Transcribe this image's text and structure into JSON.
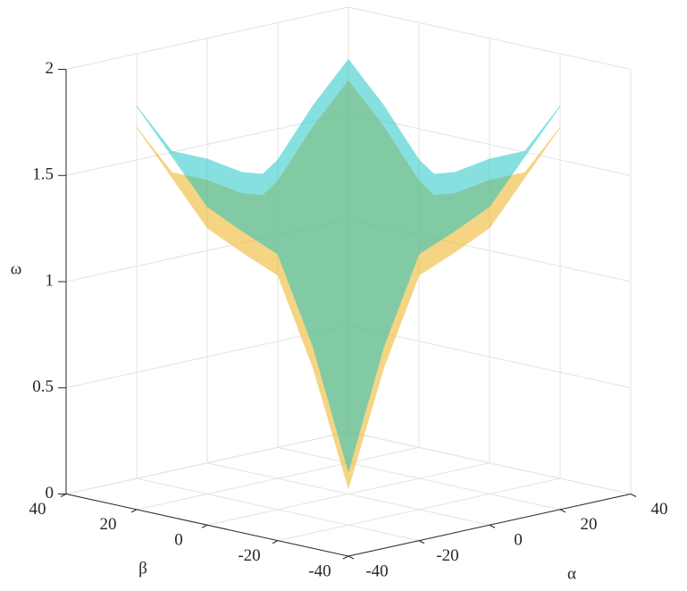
{
  "chart_data": {
    "type": "surface3d",
    "x_label": "α",
    "y_label": "β",
    "z_label": "ω",
    "xlim": [
      -40,
      40
    ],
    "ylim": [
      -40,
      40
    ],
    "zlim": [
      0,
      2
    ],
    "xticks": [
      -40,
      -20,
      0,
      20,
      40
    ],
    "yticks": [
      -40,
      -20,
      0,
      20,
      40
    ],
    "zticks": [
      0,
      0.5,
      1,
      1.5,
      2
    ],
    "grid": true,
    "x": [
      -40,
      -30,
      -20,
      -10,
      0,
      10,
      20
    ],
    "y": [
      -40,
      -30,
      -20,
      -10,
      0,
      10,
      20
    ],
    "series": [
      {
        "color": "#EDB120",
        "opacity": 0.55,
        "z": [
          [
            0.32,
            0.85,
            1.25,
            1.32,
            1.4,
            1.6,
            1.8
          ],
          [
            0.85,
            1.05,
            1.35,
            1.42,
            1.48,
            1.55,
            1.55
          ],
          [
            1.25,
            1.35,
            1.4,
            1.42,
            1.46,
            1.45,
            1.32
          ],
          [
            1.32,
            1.42,
            1.42,
            1.5,
            1.48,
            1.4,
            1.28
          ],
          [
            1.4,
            1.48,
            1.46,
            1.48,
            1.55,
            1.52,
            1.4
          ],
          [
            1.6,
            1.55,
            1.45,
            1.4,
            1.52,
            1.65,
            1.62
          ],
          [
            1.8,
            1.55,
            1.32,
            1.28,
            1.4,
            1.62,
            1.8
          ]
        ]
      },
      {
        "color": "#12C2C2",
        "opacity": 0.5,
        "z": [
          [
            0.4,
            0.95,
            1.35,
            1.42,
            1.5,
            1.7,
            1.9
          ],
          [
            0.95,
            1.15,
            1.45,
            1.52,
            1.58,
            1.65,
            1.65
          ],
          [
            1.35,
            1.45,
            1.5,
            1.52,
            1.56,
            1.55,
            1.42
          ],
          [
            1.42,
            1.52,
            1.52,
            1.6,
            1.58,
            1.5,
            1.38
          ],
          [
            1.5,
            1.58,
            1.56,
            1.58,
            1.65,
            1.62,
            1.5
          ],
          [
            1.7,
            1.65,
            1.55,
            1.5,
            1.62,
            1.75,
            1.72
          ],
          [
            1.9,
            1.65,
            1.42,
            1.38,
            1.5,
            1.72,
            1.9
          ]
        ]
      }
    ]
  }
}
